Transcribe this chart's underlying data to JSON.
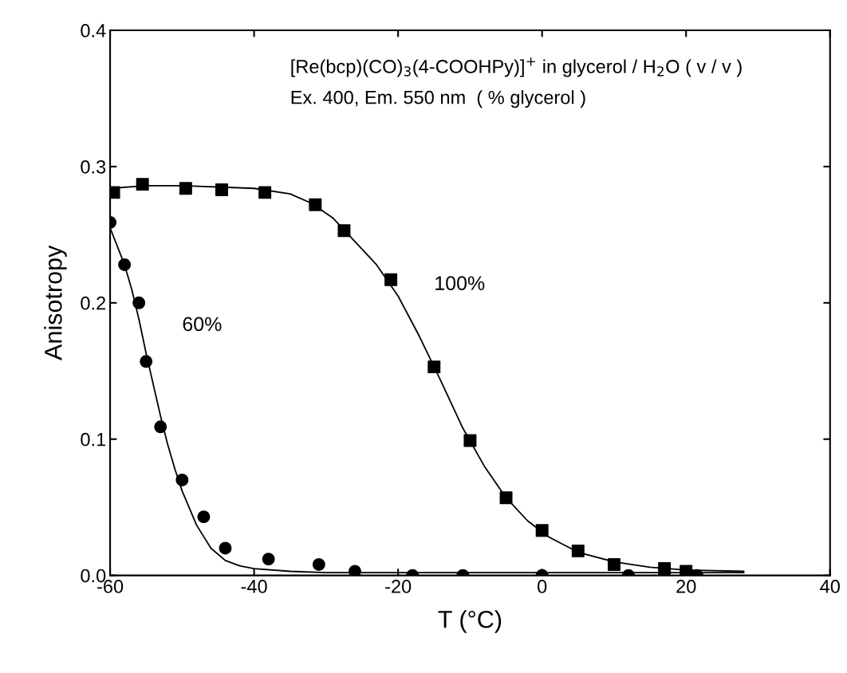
{
  "chart_data": {
    "type": "scatter",
    "xlabel": "T (°C)",
    "ylabel": "Anisotropy",
    "xlim": [
      -60,
      40
    ],
    "xticks": [
      -60,
      -40,
      -20,
      0,
      20,
      40
    ],
    "ylim": [
      0,
      0.4
    ],
    "yticks": [
      {
        "value": 0,
        "label": "0.0"
      },
      {
        "value": 0.1,
        "label": "0.1"
      },
      {
        "value": 0.2,
        "label": "0.2"
      },
      {
        "value": 0.3,
        "label": "0.3"
      },
      {
        "value": 0.4,
        "label": "0.4"
      }
    ],
    "grid": false,
    "series": [
      {
        "marker": "square",
        "color": "#000000",
        "x": [
          -59.5,
          -55.5,
          -49.5,
          -44.5,
          -38.5,
          -31.5,
          -27.5,
          -21,
          -15,
          -10,
          -5,
          0,
          5,
          10,
          17,
          20
        ],
        "values": [
          0.281,
          0.287,
          0.284,
          0.283,
          0.281,
          0.272,
          0.253,
          0.217,
          0.153,
          0.099,
          0.057,
          0.033,
          0.018,
          0.008,
          0.005,
          0.003
        ]
      },
      {
        "marker": "circle",
        "color": "#000000",
        "x": [
          -60,
          -58,
          -56,
          -55,
          -53,
          -50,
          -47,
          -44,
          -38,
          -31,
          -26,
          -18,
          -11,
          0,
          12,
          21.5
        ],
        "values": [
          0.259,
          0.228,
          0.2,
          0.157,
          0.109,
          0.07,
          0.043,
          0.02,
          0.012,
          0.008,
          0.003,
          0.0,
          0.0,
          0.0,
          0.0,
          0.0
        ]
      },
      {
        "type": "line",
        "marker": "none",
        "color": "#000000",
        "x": [
          -60,
          -55,
          -50,
          -45,
          -40,
          -35,
          -32,
          -29,
          -26,
          -23,
          -20,
          -17,
          -14,
          -11,
          -8,
          -5,
          -2,
          1,
          5,
          10,
          15,
          20,
          28
        ],
        "values": [
          0.284,
          0.286,
          0.286,
          0.285,
          0.284,
          0.28,
          0.273,
          0.262,
          0.245,
          0.228,
          0.205,
          0.175,
          0.142,
          0.108,
          0.08,
          0.057,
          0.04,
          0.028,
          0.017,
          0.01,
          0.006,
          0.004,
          0.003
        ]
      },
      {
        "type": "line",
        "marker": "none",
        "color": "#000000",
        "x": [
          -60,
          -58,
          -57,
          -56,
          -55,
          -54,
          -53,
          -52,
          -51,
          -50,
          -48,
          -46,
          -44,
          -42,
          -40,
          -35,
          -30,
          -20,
          0,
          28
        ],
        "values": [
          0.255,
          0.228,
          0.21,
          0.188,
          0.163,
          0.14,
          0.117,
          0.096,
          0.078,
          0.062,
          0.037,
          0.02,
          0.011,
          0.007,
          0.005,
          0.003,
          0.002,
          0.002,
          0.002,
          0.002
        ]
      }
    ],
    "annotations": [
      "[Re(bcp)(CO)$_{3}$(4-COOHPy)]$^{+}$ in glycerol / H$_{2}$O ( v / v )",
      "Ex. 400, Em. 550 nm  ( % glycerol )",
      "100%",
      "60%"
    ]
  }
}
